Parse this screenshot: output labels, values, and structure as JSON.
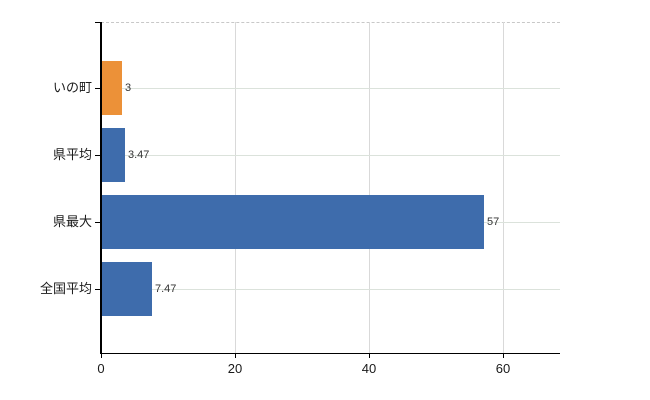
{
  "chart_data": {
    "type": "bar",
    "orientation": "horizontal",
    "title": "",
    "categories": [
      "いの町",
      "県平均",
      "県最大",
      "全国平均"
    ],
    "values": [
      3,
      3.47,
      57,
      7.47
    ],
    "value_labels": [
      "3",
      "3.47",
      "57",
      "7.47"
    ],
    "series": [
      {
        "name": "",
        "values": [
          3,
          3.47,
          57,
          7.47
        ]
      }
    ],
    "bar_colors": [
      "#ec9138",
      "#3e6cac",
      "#3e6cac",
      "#3e6cac"
    ],
    "x_tick_labels": [
      "0",
      "20",
      "40",
      "60"
    ],
    "x_tick_values": [
      0,
      20,
      40,
      60
    ],
    "xlim": [
      0,
      68.5
    ],
    "grid": true,
    "legend_position": "none"
  },
  "colors": {
    "bar_orange": "#ec9138",
    "bar_blue": "#3e6cac",
    "axis": "#000000",
    "vertical_gridline": "#d9d9d9",
    "horizontal_gridline": "#dbe2db",
    "top_border_dashed": "#c8c8c8",
    "background": "#ffffff",
    "category_text": "#1a1a1a",
    "value_text": "#333333"
  }
}
